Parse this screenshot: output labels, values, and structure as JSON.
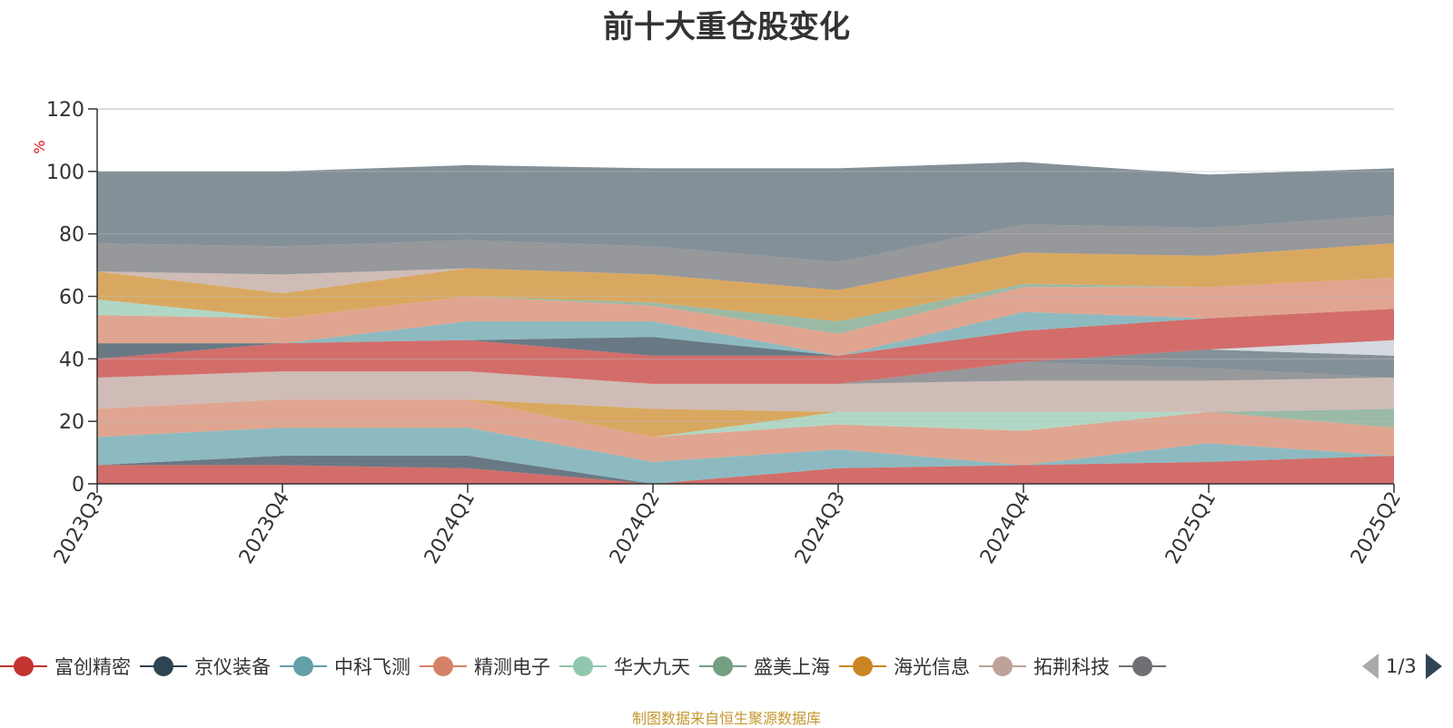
{
  "title": "前十大重仓股变化",
  "source_note": "制图数据来自恒生聚源数据库",
  "pager": {
    "text": "1/3"
  },
  "legend": [
    {
      "name": "富创精密",
      "color": "#c23531"
    },
    {
      "name": "京仪装备",
      "color": "#2f4554"
    },
    {
      "name": "中科飞测",
      "color": "#61a0a8"
    },
    {
      "name": "精测电子",
      "color": "#d48265"
    },
    {
      "name": "华大九天",
      "color": "#91c7ae"
    },
    {
      "name": "盛美上海",
      "color": "#749f83"
    },
    {
      "name": "海光信息",
      "color": "#ca8622"
    },
    {
      "name": "拓荆科技",
      "color": "#bda29a"
    },
    {
      "name": "",
      "color": "#6e7074"
    }
  ],
  "chart_data": {
    "type": "area",
    "stacked": true,
    "title": "前十大重仓股变化",
    "ylabel": "%",
    "ylim": [
      0,
      120
    ],
    "yticks": [
      0,
      20,
      40,
      60,
      80,
      100,
      120
    ],
    "categories": [
      "2023Q3",
      "2023Q4",
      "2024Q1",
      "2024Q2",
      "2024Q3",
      "2024Q4",
      "2025Q1",
      "2025Q2"
    ],
    "grid": true,
    "legend_position": "bottom",
    "series": [
      {
        "color": "#c23531",
        "values": [
          6,
          6,
          5,
          0,
          5,
          6,
          7,
          9
        ]
      },
      {
        "color": "#2f4554",
        "values": [
          0,
          3,
          4,
          0,
          0,
          0,
          0,
          0
        ]
      },
      {
        "color": "#61a0a8",
        "values": [
          9,
          9,
          9,
          7,
          6,
          0,
          6,
          0
        ]
      },
      {
        "color": "#d48265",
        "values": [
          9,
          9,
          9,
          8,
          8,
          11,
          10,
          9
        ]
      },
      {
        "color": "#91c7ae",
        "values": [
          0,
          0,
          0,
          0,
          4,
          6,
          0,
          0
        ]
      },
      {
        "color": "#749f83",
        "values": [
          0,
          0,
          0,
          0,
          0,
          0,
          0,
          6
        ]
      },
      {
        "color": "#ca8622",
        "values": [
          0,
          0,
          0,
          9,
          0,
          0,
          0,
          0
        ]
      },
      {
        "color": "#bda29a",
        "values": [
          10,
          9,
          9,
          8,
          9,
          10,
          10,
          10
        ]
      },
      {
        "color": "#6e7074",
        "values": [
          0,
          0,
          0,
          0,
          0,
          6,
          4,
          0
        ]
      },
      {
        "color": "#546570",
        "values": [
          0,
          0,
          0,
          0,
          0,
          0,
          6,
          7
        ]
      },
      {
        "color": "#c4ccd3",
        "values": [
          0,
          0,
          0,
          0,
          0,
          0,
          0,
          5
        ]
      },
      {
        "color": "#c23531",
        "values": [
          6,
          9,
          10,
          9,
          9,
          10,
          10,
          10
        ]
      },
      {
        "color": "#2f4554",
        "values": [
          5,
          0,
          0,
          6,
          0,
          0,
          0,
          0
        ]
      },
      {
        "color": "#61a0a8",
        "values": [
          0,
          0,
          6,
          5,
          0,
          6,
          0,
          0
        ]
      },
      {
        "color": "#d48265",
        "values": [
          9,
          8,
          8,
          5,
          7,
          8,
          10,
          10
        ]
      },
      {
        "color": "#91c7ae",
        "values": [
          5,
          0,
          0,
          0,
          0,
          0,
          0,
          0
        ]
      },
      {
        "color": "#749f83",
        "values": [
          0,
          0,
          0,
          1,
          4,
          1,
          0,
          0
        ]
      },
      {
        "color": "#ca8622",
        "values": [
          9,
          8,
          9,
          9,
          10,
          10,
          10,
          11
        ]
      },
      {
        "color": "#bda29a",
        "values": [
          0,
          6,
          0,
          0,
          0,
          0,
          0,
          0
        ]
      },
      {
        "color": "#6e7074",
        "values": [
          9,
          9,
          9,
          9,
          9,
          9,
          9,
          9
        ]
      },
      {
        "color": "#546570",
        "values": [
          23,
          24,
          24,
          25,
          30,
          20,
          17,
          15
        ]
      }
    ]
  }
}
